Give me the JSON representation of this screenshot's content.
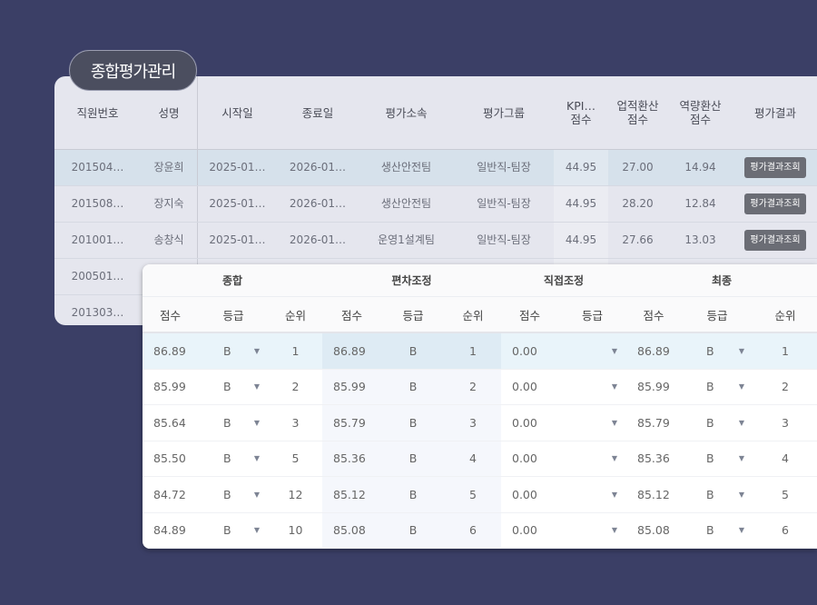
{
  "title": "종합평가관리",
  "main": {
    "headers": [
      "직원번호",
      "성명",
      "시작일",
      "종료일",
      "평가소속",
      "평가그룹",
      "KPI…\n점수",
      "업적환산\n점수",
      "역량환산\n점수",
      "평가결과"
    ],
    "rows": [
      {
        "id": "201504…",
        "name": "장윤희",
        "start": "2025-01…",
        "end": "2026-01…",
        "dept": "생산안전팀",
        "group": "일반직-팀장",
        "kpi": "44.95",
        "perf": "27.00",
        "comp": "14.94",
        "action": "평가결과조회"
      },
      {
        "id": "201508…",
        "name": "장지숙",
        "start": "2025-01…",
        "end": "2026-01…",
        "dept": "생산안전팀",
        "group": "일반직-팀장",
        "kpi": "44.95",
        "perf": "28.20",
        "comp": "12.84",
        "action": "평가결과조회"
      },
      {
        "id": "201001…",
        "name": "송창식",
        "start": "2025-01…",
        "end": "2026-01…",
        "dept": "운영1설계팀",
        "group": "일반직-팀장",
        "kpi": "44.95",
        "perf": "27.66",
        "comp": "13.03",
        "action": "평가결과조회"
      },
      {
        "id": "200501…"
      },
      {
        "id": "201303…"
      }
    ]
  },
  "detail": {
    "groups": [
      "종합",
      "편차조정",
      "직접조정",
      "최종"
    ],
    "subheaders": [
      "점수",
      "등급",
      "순위",
      "점수",
      "등급",
      "순위",
      "점수",
      "등급",
      "점수",
      "등급",
      "순위"
    ],
    "rows": [
      [
        "86.89",
        "B",
        "1",
        "86.89",
        "B",
        "1",
        "0.00",
        "",
        "86.89",
        "B",
        "1"
      ],
      [
        "85.99",
        "B",
        "2",
        "85.99",
        "B",
        "2",
        "0.00",
        "",
        "85.99",
        "B",
        "2"
      ],
      [
        "85.64",
        "B",
        "3",
        "85.79",
        "B",
        "3",
        "0.00",
        "",
        "85.79",
        "B",
        "3"
      ],
      [
        "85.50",
        "B",
        "5",
        "85.36",
        "B",
        "4",
        "0.00",
        "",
        "85.36",
        "B",
        "4"
      ],
      [
        "84.72",
        "B",
        "12",
        "85.12",
        "B",
        "5",
        "0.00",
        "",
        "85.12",
        "B",
        "5"
      ],
      [
        "84.89",
        "B",
        "10",
        "85.08",
        "B",
        "6",
        "0.00",
        "",
        "85.08",
        "B",
        "6"
      ]
    ]
  },
  "colors": {
    "background": "#3b3f66",
    "selected_row": "#d6e1eb",
    "button": "#6b6d75"
  }
}
